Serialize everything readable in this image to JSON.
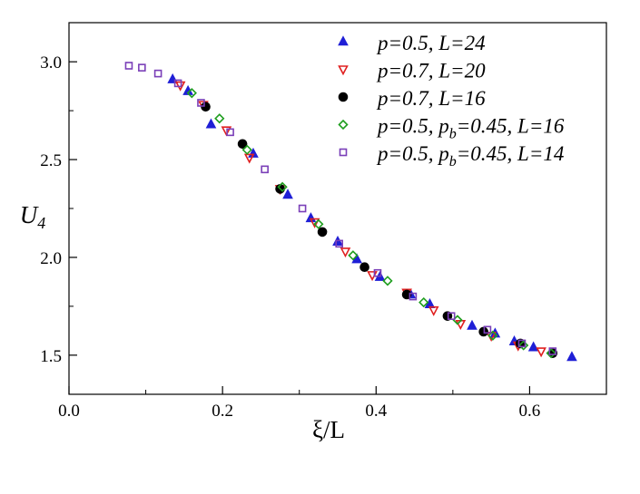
{
  "chart_data": {
    "type": "scatter",
    "xlabel": "ξ/L",
    "ylabel": "U4",
    "xlim": [
      0.0,
      0.7
    ],
    "ylim": [
      1.3,
      3.2
    ],
    "x_ticks": [
      "0.0",
      "0.2",
      "0.4",
      "0.6"
    ],
    "x_tick_values": [
      0.0,
      0.2,
      0.4,
      0.6
    ],
    "y_ticks": [
      "1.5",
      "2.0",
      "2.5",
      "3.0"
    ],
    "y_tick_values": [
      1.5,
      2.0,
      2.5,
      3.0
    ],
    "grid": false,
    "legend_position": "top-right",
    "series": [
      {
        "name": "p=0.5, L=24",
        "marker": "triangle-up",
        "color": "#1f1fd6",
        "filled": true,
        "points": [
          [
            0.135,
            2.91
          ],
          [
            0.155,
            2.85
          ],
          [
            0.185,
            2.68
          ],
          [
            0.24,
            2.53
          ],
          [
            0.285,
            2.32
          ],
          [
            0.315,
            2.2
          ],
          [
            0.35,
            2.08
          ],
          [
            0.375,
            1.99
          ],
          [
            0.405,
            1.9
          ],
          [
            0.445,
            1.81
          ],
          [
            0.47,
            1.76
          ],
          [
            0.525,
            1.65
          ],
          [
            0.555,
            1.61
          ],
          [
            0.58,
            1.57
          ],
          [
            0.605,
            1.54
          ],
          [
            0.655,
            1.49
          ]
        ]
      },
      {
        "name": "p=0.7, L=20",
        "marker": "triangle-down",
        "color": "#e02020",
        "filled": false,
        "points": [
          [
            0.145,
            2.88
          ],
          [
            0.175,
            2.78
          ],
          [
            0.205,
            2.65
          ],
          [
            0.235,
            2.51
          ],
          [
            0.275,
            2.35
          ],
          [
            0.32,
            2.18
          ],
          [
            0.36,
            2.03
          ],
          [
            0.395,
            1.91
          ],
          [
            0.44,
            1.82
          ],
          [
            0.475,
            1.73
          ],
          [
            0.51,
            1.66
          ],
          [
            0.55,
            1.6
          ],
          [
            0.585,
            1.55
          ],
          [
            0.615,
            1.52
          ]
        ]
      },
      {
        "name": "p=0.7, L=16",
        "marker": "circle",
        "color": "#000000",
        "filled": true,
        "points": [
          [
            0.178,
            2.77
          ],
          [
            0.226,
            2.58
          ],
          [
            0.275,
            2.35
          ],
          [
            0.33,
            2.13
          ],
          [
            0.385,
            1.95
          ],
          [
            0.44,
            1.81
          ],
          [
            0.493,
            1.7
          ],
          [
            0.54,
            1.62
          ],
          [
            0.588,
            1.56
          ],
          [
            0.63,
            1.51
          ]
        ]
      },
      {
        "name": "p=0.5, p_b=0.45, L=16",
        "marker": "diamond",
        "color": "#1f9e1f",
        "filled": false,
        "points": [
          [
            0.16,
            2.84
          ],
          [
            0.196,
            2.71
          ],
          [
            0.232,
            2.55
          ],
          [
            0.278,
            2.36
          ],
          [
            0.325,
            2.17
          ],
          [
            0.37,
            2.01
          ],
          [
            0.415,
            1.88
          ],
          [
            0.462,
            1.77
          ],
          [
            0.506,
            1.68
          ],
          [
            0.552,
            1.6
          ],
          [
            0.592,
            1.55
          ],
          [
            0.628,
            1.51
          ]
        ]
      },
      {
        "name": "p=0.5, p_b=0.45, L=14",
        "marker": "square",
        "color": "#7a3fb8",
        "filled": false,
        "points": [
          [
            0.078,
            2.98
          ],
          [
            0.095,
            2.97
          ],
          [
            0.116,
            2.94
          ],
          [
            0.142,
            2.89
          ],
          [
            0.172,
            2.79
          ],
          [
            0.21,
            2.64
          ],
          [
            0.255,
            2.45
          ],
          [
            0.304,
            2.25
          ],
          [
            0.352,
            2.07
          ],
          [
            0.402,
            1.92
          ],
          [
            0.448,
            1.8
          ],
          [
            0.498,
            1.7
          ],
          [
            0.545,
            1.63
          ],
          [
            0.59,
            1.56
          ],
          [
            0.63,
            1.52
          ]
        ]
      }
    ]
  },
  "legend": {
    "entries": [
      {
        "parts": [
          [
            "p=0.5, L=24",
            "n"
          ]
        ]
      },
      {
        "parts": [
          [
            "p=0.7, L=20",
            "n"
          ]
        ]
      },
      {
        "parts": [
          [
            "p=0.7, L=16",
            "n"
          ]
        ]
      },
      {
        "parts": [
          [
            "p=0.5, p",
            "n"
          ],
          [
            "b",
            "sub"
          ],
          [
            "=0.45, L=16",
            "n"
          ]
        ]
      },
      {
        "parts": [
          [
            "p=0.5, p",
            "n"
          ],
          [
            "b",
            "sub"
          ],
          [
            "=0.45, L=14",
            "n"
          ]
        ]
      }
    ]
  },
  "axis_labels": {
    "x": {
      "main": "ξ/L"
    },
    "y": {
      "main": "U",
      "sub": "4"
    }
  }
}
